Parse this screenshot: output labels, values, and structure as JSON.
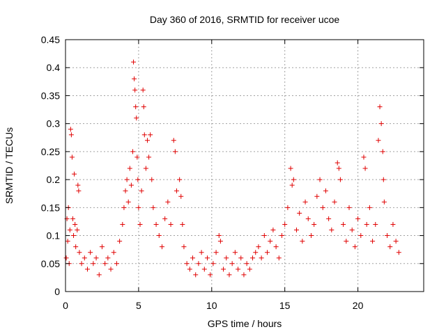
{
  "chart_data": {
    "type": "scatter",
    "title": "Day 360 of 2016, SRMTID for receiver ucoe",
    "xlabel": "GPS time / hours",
    "ylabel": "SRMTID / TECUs",
    "xlim": [
      0,
      24.5
    ],
    "ylim": [
      0,
      0.45
    ],
    "xticks": [
      0,
      5,
      10,
      15,
      20
    ],
    "xtick_labels": [
      "0",
      "5",
      "10",
      "15",
      "20"
    ],
    "yticks": [
      0,
      0.05,
      0.1,
      0.15,
      0.2,
      0.25,
      0.3,
      0.35,
      0.4,
      0.45
    ],
    "ytick_labels": [
      "0",
      "0.05",
      "0.1",
      "0.15",
      "0.2",
      "0.25",
      "0.3",
      "0.35",
      "0.4",
      "0.45"
    ],
    "grid": true,
    "marker": "plus",
    "color": "#e00000",
    "series": [
      {
        "name": "SRMTID",
        "points": [
          [
            0.05,
            0.06
          ],
          [
            0.1,
            0.13
          ],
          [
            0.15,
            0.09
          ],
          [
            0.2,
            0.15
          ],
          [
            0.25,
            0.05
          ],
          [
            0.3,
            0.11
          ],
          [
            0.35,
            0.29
          ],
          [
            0.4,
            0.28
          ],
          [
            0.45,
            0.24
          ],
          [
            0.5,
            0.13
          ],
          [
            0.55,
            0.1
          ],
          [
            0.6,
            0.21
          ],
          [
            0.65,
            0.12
          ],
          [
            0.7,
            0.08
          ],
          [
            0.8,
            0.11
          ],
          [
            0.85,
            0.19
          ],
          [
            0.9,
            0.18
          ],
          [
            0.95,
            0.07
          ],
          [
            1.1,
            0.05
          ],
          [
            1.3,
            0.06
          ],
          [
            1.5,
            0.04
          ],
          [
            1.7,
            0.07
          ],
          [
            1.9,
            0.05
          ],
          [
            2.1,
            0.06
          ],
          [
            2.3,
            0.03
          ],
          [
            2.5,
            0.08
          ],
          [
            2.7,
            0.05
          ],
          [
            2.9,
            0.06
          ],
          [
            3.1,
            0.04
          ],
          [
            3.3,
            0.07
          ],
          [
            3.5,
            0.05
          ],
          [
            3.7,
            0.09
          ],
          [
            3.9,
            0.12
          ],
          [
            4.0,
            0.15
          ],
          [
            4.1,
            0.18
          ],
          [
            4.2,
            0.2
          ],
          [
            4.3,
            0.16
          ],
          [
            4.4,
            0.22
          ],
          [
            4.5,
            0.19
          ],
          [
            4.6,
            0.25
          ],
          [
            4.65,
            0.41
          ],
          [
            4.7,
            0.38
          ],
          [
            4.75,
            0.36
          ],
          [
            4.8,
            0.33
          ],
          [
            4.85,
            0.31
          ],
          [
            4.9,
            0.24
          ],
          [
            4.95,
            0.2
          ],
          [
            5.0,
            0.15
          ],
          [
            5.1,
            0.12
          ],
          [
            5.2,
            0.18
          ],
          [
            5.3,
            0.36
          ],
          [
            5.35,
            0.33
          ],
          [
            5.4,
            0.28
          ],
          [
            5.5,
            0.22
          ],
          [
            5.6,
            0.27
          ],
          [
            5.7,
            0.24
          ],
          [
            5.8,
            0.28
          ],
          [
            5.9,
            0.2
          ],
          [
            6.0,
            0.15
          ],
          [
            6.2,
            0.12
          ],
          [
            6.4,
            0.1
          ],
          [
            6.6,
            0.08
          ],
          [
            6.8,
            0.13
          ],
          [
            7.0,
            0.16
          ],
          [
            7.2,
            0.12
          ],
          [
            7.4,
            0.27
          ],
          [
            7.5,
            0.25
          ],
          [
            7.6,
            0.18
          ],
          [
            7.8,
            0.2
          ],
          [
            7.9,
            0.17
          ],
          [
            8.0,
            0.12
          ],
          [
            8.1,
            0.08
          ],
          [
            8.3,
            0.05
          ],
          [
            8.5,
            0.04
          ],
          [
            8.7,
            0.06
          ],
          [
            8.9,
            0.03
          ],
          [
            9.1,
            0.05
          ],
          [
            9.3,
            0.07
          ],
          [
            9.5,
            0.04
          ],
          [
            9.7,
            0.06
          ],
          [
            9.9,
            0.03
          ],
          [
            10.1,
            0.05
          ],
          [
            10.3,
            0.07
          ],
          [
            10.5,
            0.1
          ],
          [
            10.6,
            0.09
          ],
          [
            10.8,
            0.04
          ],
          [
            11.0,
            0.06
          ],
          [
            11.2,
            0.03
          ],
          [
            11.4,
            0.05
          ],
          [
            11.6,
            0.07
          ],
          [
            11.8,
            0.04
          ],
          [
            12.0,
            0.06
          ],
          [
            12.2,
            0.03
          ],
          [
            12.4,
            0.05
          ],
          [
            12.6,
            0.04
          ],
          [
            12.8,
            0.06
          ],
          [
            13.0,
            0.07
          ],
          [
            13.2,
            0.08
          ],
          [
            13.4,
            0.06
          ],
          [
            13.6,
            0.1
          ],
          [
            13.8,
            0.07
          ],
          [
            14.0,
            0.09
          ],
          [
            14.2,
            0.11
          ],
          [
            14.4,
            0.08
          ],
          [
            14.6,
            0.06
          ],
          [
            14.8,
            0.1
          ],
          [
            15.0,
            0.12
          ],
          [
            15.2,
            0.15
          ],
          [
            15.4,
            0.22
          ],
          [
            15.5,
            0.19
          ],
          [
            15.6,
            0.2
          ],
          [
            15.8,
            0.11
          ],
          [
            16.0,
            0.14
          ],
          [
            16.2,
            0.09
          ],
          [
            16.4,
            0.16
          ],
          [
            16.6,
            0.13
          ],
          [
            16.8,
            0.1
          ],
          [
            17.0,
            0.12
          ],
          [
            17.2,
            0.17
          ],
          [
            17.4,
            0.2
          ],
          [
            17.6,
            0.15
          ],
          [
            17.8,
            0.18
          ],
          [
            18.0,
            0.13
          ],
          [
            18.2,
            0.11
          ],
          [
            18.4,
            0.16
          ],
          [
            18.6,
            0.23
          ],
          [
            18.7,
            0.22
          ],
          [
            18.8,
            0.2
          ],
          [
            19.0,
            0.12
          ],
          [
            19.2,
            0.09
          ],
          [
            19.4,
            0.15
          ],
          [
            19.6,
            0.11
          ],
          [
            19.8,
            0.08
          ],
          [
            20.0,
            0.13
          ],
          [
            20.2,
            0.1
          ],
          [
            20.4,
            0.24
          ],
          [
            20.5,
            0.22
          ],
          [
            20.6,
            0.12
          ],
          [
            20.8,
            0.15
          ],
          [
            21.0,
            0.09
          ],
          [
            21.2,
            0.12
          ],
          [
            21.4,
            0.27
          ],
          [
            21.5,
            0.33
          ],
          [
            21.6,
            0.3
          ],
          [
            21.7,
            0.25
          ],
          [
            21.75,
            0.2
          ],
          [
            21.8,
            0.16
          ],
          [
            22.0,
            0.1
          ],
          [
            22.2,
            0.08
          ],
          [
            22.4,
            0.12
          ],
          [
            22.6,
            0.09
          ],
          [
            22.8,
            0.07
          ]
        ]
      }
    ]
  }
}
